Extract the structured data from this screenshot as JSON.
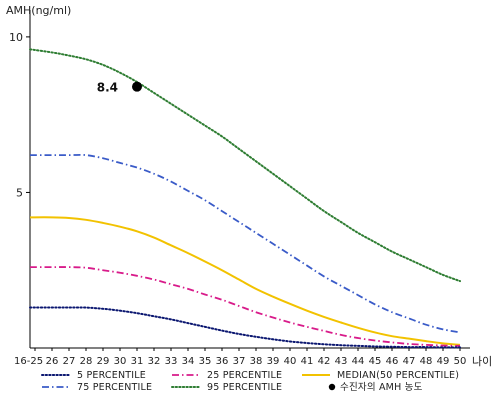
{
  "chart_data": {
    "type": "line",
    "title": "",
    "ylabel": "AMH(ng/ml)",
    "xlabel": "나이",
    "ylim": [
      0,
      10.8
    ],
    "yticks": [
      5,
      10
    ],
    "x": [
      "16-25",
      "26",
      "27",
      "28",
      "29",
      "30",
      "31",
      "32",
      "33",
      "34",
      "35",
      "36",
      "37",
      "38",
      "39",
      "40",
      "41",
      "42",
      "43",
      "44",
      "45",
      "46",
      "47",
      "48",
      "49",
      "50"
    ],
    "series": [
      {
        "name": "95 PERCENTILE",
        "color": "#2e7d32",
        "style": "dotted",
        "values": [
          9.6,
          9.5,
          9.4,
          9.28,
          9.1,
          8.85,
          8.55,
          8.2,
          7.85,
          7.5,
          7.15,
          6.8,
          6.4,
          6.0,
          5.6,
          5.2,
          4.8,
          4.4,
          4.05,
          3.7,
          3.4,
          3.1,
          2.85,
          2.6,
          2.35,
          2.15
        ]
      },
      {
        "name": "75 PERCENTILE",
        "color": "#3a5bc8",
        "style": "dashdot",
        "values": [
          6.2,
          6.2,
          6.2,
          6.2,
          6.1,
          5.95,
          5.8,
          5.6,
          5.35,
          5.05,
          4.75,
          4.4,
          4.05,
          3.7,
          3.35,
          3.0,
          2.65,
          2.3,
          2.0,
          1.7,
          1.4,
          1.15,
          0.95,
          0.75,
          0.6,
          0.5
        ]
      },
      {
        "name": "MEDIAN(50 PERCENTILE)",
        "color": "#f2c200",
        "style": "solid",
        "values": [
          4.2,
          4.2,
          4.18,
          4.12,
          4.02,
          3.9,
          3.75,
          3.55,
          3.3,
          3.05,
          2.78,
          2.5,
          2.2,
          1.9,
          1.65,
          1.42,
          1.2,
          1.0,
          0.82,
          0.65,
          0.5,
          0.38,
          0.3,
          0.22,
          0.15,
          0.1
        ]
      },
      {
        "name": "25 PERCENTILE",
        "color": "#d81b8a",
        "style": "dashdot",
        "values": [
          2.6,
          2.6,
          2.6,
          2.58,
          2.5,
          2.42,
          2.32,
          2.2,
          2.05,
          1.9,
          1.72,
          1.55,
          1.35,
          1.15,
          0.98,
          0.82,
          0.68,
          0.55,
          0.42,
          0.32,
          0.24,
          0.18,
          0.13,
          0.1,
          0.08,
          0.07
        ]
      },
      {
        "name": "5 PERCENTILE",
        "color": "#0a1670",
        "style": "dotted",
        "values": [
          1.3,
          1.3,
          1.3,
          1.3,
          1.26,
          1.2,
          1.12,
          1.02,
          0.92,
          0.8,
          0.68,
          0.56,
          0.45,
          0.36,
          0.28,
          0.21,
          0.16,
          0.12,
          0.09,
          0.07,
          0.05,
          0.04,
          0.03,
          0.03,
          0.02,
          0.02
        ]
      }
    ],
    "marker": {
      "x": "31",
      "y": 8.4,
      "label": "8.4",
      "color": "#000000"
    },
    "legend": {
      "position": "bottom",
      "items": [
        {
          "label": "5 PERCENTILE",
          "color": "#0a1670",
          "style": "dotted"
        },
        {
          "label": "25 PERCENTILE",
          "color": "#d81b8a",
          "style": "dashdot"
        },
        {
          "label": "MEDIAN(50 PERCENTILE)",
          "color": "#f2c200",
          "style": "solid"
        },
        {
          "label": "75 PERCENTILE",
          "color": "#3a5bc8",
          "style": "dashdot"
        },
        {
          "label": "95 PERCENTILE",
          "color": "#2e7d32",
          "style": "dotted"
        },
        {
          "label": "수진자의 AMH 농도",
          "color": "#000000",
          "style": "marker"
        }
      ]
    },
    "grid": false
  }
}
